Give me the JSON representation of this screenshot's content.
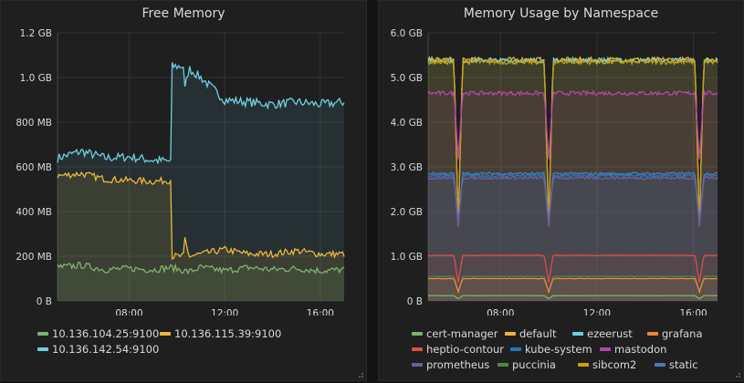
{
  "panels": [
    {
      "title": "Free Memory",
      "legend": [
        {
          "label": "10.136.104.25:9100",
          "color": "#7eb26d"
        },
        {
          "label": "10.136.115.39:9100",
          "color": "#eab839"
        },
        {
          "label": "10.136.142.54:9100",
          "color": "#6ed0e0"
        }
      ]
    },
    {
      "title": "Memory Usage by Namespace",
      "legend": [
        {
          "label": "cert-manager",
          "color": "#7eb26d"
        },
        {
          "label": "default",
          "color": "#eab839"
        },
        {
          "label": "ezeerust",
          "color": "#6ed0e0"
        },
        {
          "label": "grafana",
          "color": "#ef843c"
        },
        {
          "label": "heptio-contour",
          "color": "#e24d42"
        },
        {
          "label": "kube-system",
          "color": "#1f78c1"
        },
        {
          "label": "mastodon",
          "color": "#ba43a9"
        },
        {
          "label": "prometheus",
          "color": "#705da0"
        },
        {
          "label": "puccinia",
          "color": "#508642"
        },
        {
          "label": "sibcom2",
          "color": "#cca300"
        },
        {
          "label": "static",
          "color": "#447ebc"
        }
      ]
    }
  ],
  "chart_data": [
    {
      "type": "area",
      "title": "Free Memory",
      "xlabel": "",
      "ylabel": "",
      "x_ticks": [
        "08:00",
        "12:00",
        "16:00"
      ],
      "x_range": [
        "05:00",
        "17:00"
      ],
      "y_ticks": [
        "0 B",
        "200 MB",
        "400 MB",
        "600 MB",
        "800 MB",
        "1.0 GB",
        "1.2 GB"
      ],
      "ylim_mb": [
        0,
        1200
      ],
      "grid": true,
      "legend_position": "bottom",
      "series": [
        {
          "name": "10.136.104.25:9100",
          "color": "#7eb26d",
          "x": [
            "05:00",
            "06:00",
            "07:00",
            "08:00",
            "09:00",
            "09:45",
            "10:30",
            "11:00",
            "12:00",
            "13:00",
            "14:00",
            "15:00",
            "16:00",
            "17:00"
          ],
          "values": [
            150,
            160,
            140,
            145,
            140,
            150,
            130,
            150,
            135,
            150,
            140,
            145,
            135,
            140
          ]
        },
        {
          "name": "10.136.115.39:9100",
          "color": "#eab839",
          "x": [
            "05:00",
            "06:00",
            "07:00",
            "08:00",
            "09:00",
            "09:45",
            "10:30",
            "11:00",
            "12:00",
            "13:00",
            "14:00",
            "15:00",
            "16:00",
            "17:00"
          ],
          "values": [
            560,
            570,
            545,
            540,
            535,
            540,
            200,
            210,
            230,
            210,
            210,
            225,
            210,
            210
          ]
        },
        {
          "name": "10.136.142.54:9100",
          "color": "#6ed0e0",
          "x": [
            "05:00",
            "06:00",
            "07:00",
            "08:00",
            "09:00",
            "09:45",
            "10:30",
            "11:00",
            "12:00",
            "13:00",
            "14:00",
            "15:00",
            "16:00",
            "17:00"
          ],
          "values": [
            640,
            670,
            640,
            645,
            630,
            625,
            1040,
            1000,
            900,
            890,
            880,
            890,
            880,
            890
          ]
        }
      ]
    },
    {
      "type": "area",
      "title": "Memory Usage by Namespace",
      "xlabel": "",
      "ylabel": "",
      "x_ticks": [
        "08:00",
        "12:00",
        "16:00"
      ],
      "x_range": [
        "05:00",
        "17:00"
      ],
      "y_ticks": [
        "0 B",
        "1.0 GB",
        "2.0 GB",
        "3.0 GB",
        "4.0 GB",
        "5.0 GB",
        "6.0 GB"
      ],
      "ylim_gb": [
        0,
        6
      ],
      "grid": true,
      "legend_position": "bottom",
      "dips_at": [
        "06:15",
        "10:00",
        "16:15"
      ],
      "series": [
        {
          "name": "cert-manager",
          "color": "#7eb26d",
          "values": [
            0.12
          ]
        },
        {
          "name": "default",
          "color": "#eab839",
          "values": [
            5.4
          ]
        },
        {
          "name": "ezeerust",
          "color": "#6ed0e0",
          "values": [
            5.38
          ]
        },
        {
          "name": "grafana",
          "color": "#ef843c",
          "values": [
            0.5
          ]
        },
        {
          "name": "heptio-contour",
          "color": "#e24d42",
          "values": [
            1.02
          ]
        },
        {
          "name": "kube-system",
          "color": "#1f78c1",
          "values": [
            2.8
          ]
        },
        {
          "name": "mastodon",
          "color": "#ba43a9",
          "values": [
            4.65
          ]
        },
        {
          "name": "prometheus",
          "color": "#705da0",
          "values": [
            2.75
          ]
        },
        {
          "name": "puccinia",
          "color": "#508642",
          "values": [
            0.55
          ]
        },
        {
          "name": "sibcom2",
          "color": "#cca300",
          "values": [
            5.35
          ]
        },
        {
          "name": "static",
          "color": "#447ebc",
          "values": [
            2.85
          ]
        }
      ]
    }
  ]
}
